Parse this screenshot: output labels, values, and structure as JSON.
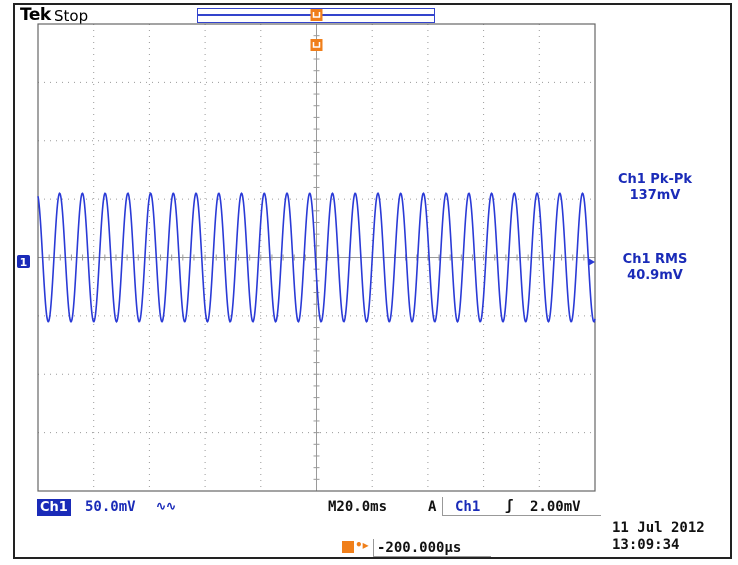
{
  "header": {
    "brand": "Tek",
    "run_status": "Stop"
  },
  "measurements": [
    {
      "label": "Ch1 Pk-Pk",
      "value": "137mV"
    },
    {
      "label": "Ch1 RMS",
      "value": "40.9mV"
    }
  ],
  "channel": {
    "badge": "Ch1",
    "scale": "50.0mV",
    "coupling_icon": "bandwidth-limit-icon",
    "coupling_glyph": "∿∿",
    "ground_marker": "1"
  },
  "horizontal": {
    "timebase": "M20.0ms",
    "position": "-200.000µs"
  },
  "trigger": {
    "mode": "A",
    "source": "Ch1",
    "slope_icon": "rising-edge-icon",
    "slope_glyph": "ʃ",
    "level": "2.00mV"
  },
  "timestamp": {
    "date": "11 Jul   2012",
    "time": "13:09:34"
  },
  "colors": {
    "trace": "#2a3ad6",
    "channel": "#1a2bb8",
    "trigger": "#f07f1a",
    "grid": "#9a9a9a"
  },
  "waveform": {
    "cycles_on_screen": 24.5,
    "amplitude_divisions": 1.1,
    "vertical_divisions": 8,
    "horizontal_divisions": 10
  }
}
